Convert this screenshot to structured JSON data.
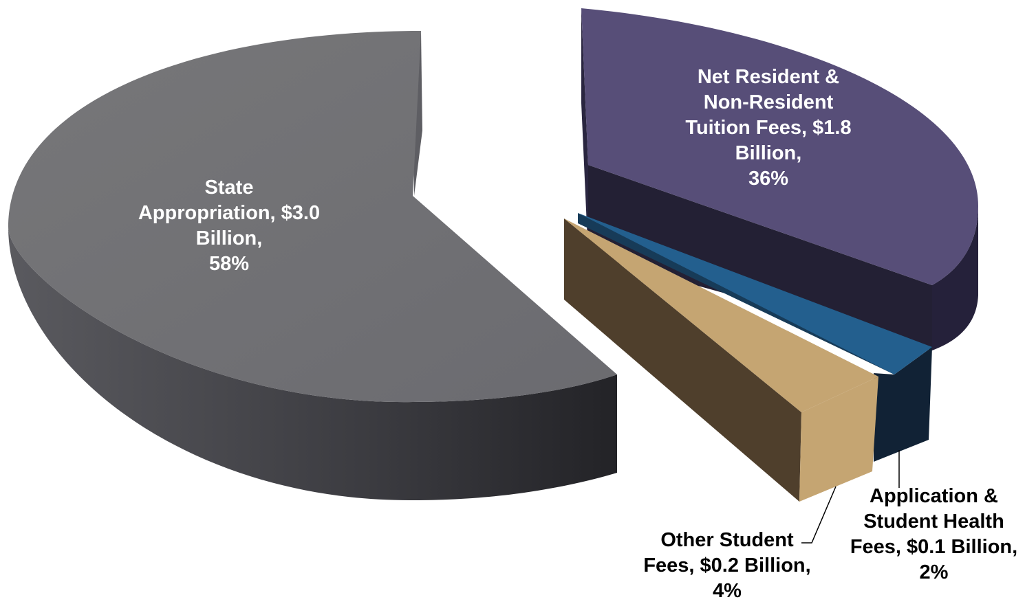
{
  "chart_data": {
    "type": "pie",
    "title": "",
    "slices": [
      {
        "label_lines": [
          "State",
          "Appropriation, $3.0",
          "Billion,",
          "58%"
        ],
        "category": "State Appropriation",
        "value": 3.0,
        "unit": "Billion",
        "percent": 58,
        "color": "#6d6d72"
      },
      {
        "label_lines": [
          "Net Resident &",
          "Non-Resident",
          "Tuition Fees, $1.8",
          "Billion,",
          "36%"
        ],
        "category": "Net Resident & Non-Resident Tuition Fees",
        "value": 1.8,
        "unit": "Billion",
        "percent": 36,
        "color": "#574e78"
      },
      {
        "label_lines": [
          "Application &",
          "Student Health",
          "Fees, $0.1 Billion,",
          "2%"
        ],
        "category": "Application & Student Health Fees",
        "value": 0.1,
        "unit": "Billion",
        "percent": 2,
        "color": "#235f8e"
      },
      {
        "label_lines": [
          "Other Student",
          "Fees, $0.2 Billion,",
          "4%"
        ],
        "category": "Other Student Fees",
        "value": 0.2,
        "unit": "Billion",
        "percent": 4,
        "color": "#c5a572"
      }
    ],
    "legend": "none",
    "style": "3d-exploded-pie"
  }
}
